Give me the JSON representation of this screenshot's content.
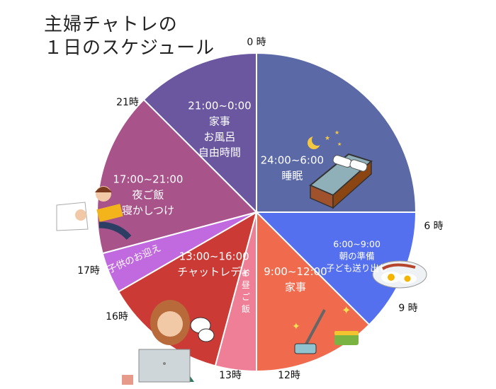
{
  "title_lines": [
    "主婦チャトレの",
    "１日のスケジュール"
  ],
  "colors": {
    "sleep": "#5b6aa6",
    "morning": "#5470ee",
    "housework_am": "#f06a4e",
    "lunch": "#ee7f96",
    "chat": "#cb3a35",
    "pickup": "#c16ae0",
    "evening": "#a8538a",
    "night": "#6a57a0"
  },
  "chart_data": {
    "type": "pie",
    "title": "主婦チャトレの １日のスケジュール",
    "unit": "hours",
    "hour_labels": [
      {
        "hour": 0,
        "text": "0 時"
      },
      {
        "hour": 6,
        "text": "6 時"
      },
      {
        "hour": 9,
        "text": "9 時"
      },
      {
        "hour": 12,
        "text": "12時"
      },
      {
        "hour": 13,
        "text": "13時"
      },
      {
        "hour": 16,
        "text": "16時"
      },
      {
        "hour": 17,
        "text": "17時"
      },
      {
        "hour": 21,
        "text": "21時"
      }
    ],
    "segments": [
      {
        "key": "sleep",
        "start": 0,
        "end": 6,
        "lines": [
          "24:00~6:00",
          "睡眠"
        ],
        "color_key": "sleep"
      },
      {
        "key": "morning",
        "start": 6,
        "end": 9,
        "lines": [
          "6:00~9:00",
          "朝の準備",
          "子ども送り出し"
        ],
        "color_key": "morning"
      },
      {
        "key": "housework_am",
        "start": 9,
        "end": 12,
        "lines": [
          "9:00~12:00",
          "家事"
        ],
        "color_key": "housework_am"
      },
      {
        "key": "lunch",
        "start": 12,
        "end": 13,
        "lines": [
          "お昼ご飯"
        ],
        "color_key": "lunch"
      },
      {
        "key": "chat",
        "start": 13,
        "end": 16,
        "lines": [
          "13:00~16:00",
          "チャットレディ"
        ],
        "color_key": "chat"
      },
      {
        "key": "pickup",
        "start": 16,
        "end": 17,
        "lines": [
          "子供のお迎え"
        ],
        "color_key": "pickup"
      },
      {
        "key": "evening",
        "start": 17,
        "end": 21,
        "lines": [
          "17:00~21:00",
          "夜ご飯",
          "寝かしつけ"
        ],
        "color_key": "evening"
      },
      {
        "key": "night",
        "start": 21,
        "end": 24,
        "lines": [
          "21:00~0:00",
          "家事",
          "お風呂",
          "自由時間"
        ],
        "color_key": "night"
      }
    ]
  }
}
